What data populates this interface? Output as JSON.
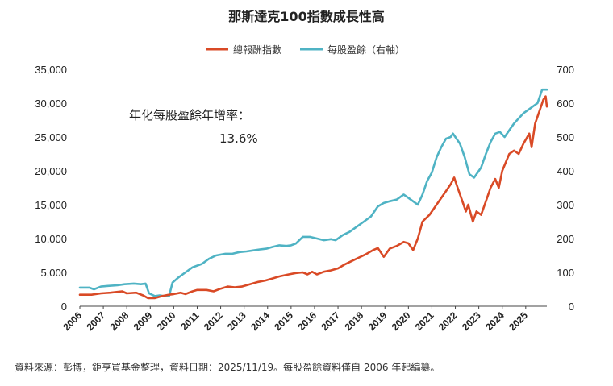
{
  "chart_data": {
    "type": "line",
    "title": "那斯達克100指數成長性高",
    "source_note": "資料來源：彭博，鉅亨買基金整理，資料日期：2025/11/19。每股盈餘資料僅自 2006 年起編纂。",
    "annotation": {
      "label": "年化每股盈餘年增率：",
      "value": "13.6%"
    },
    "left_axis": {
      "min": 0,
      "max": 35000,
      "ticks": [
        "0",
        "5,000",
        "10,000",
        "15,000",
        "20,000",
        "25,000",
        "30,000",
        "35,000"
      ]
    },
    "right_axis": {
      "min": 0,
      "max": 700,
      "ticks": [
        "0",
        "100",
        "200",
        "300",
        "400",
        "500",
        "600",
        "700"
      ]
    },
    "x_axis": {
      "min": 2006,
      "max": 2025.9,
      "ticks": [
        "2006",
        "2007",
        "2008",
        "2009",
        "2010",
        "2011",
        "2012",
        "2013",
        "2014",
        "2015",
        "2016",
        "2017",
        "2018",
        "2019",
        "2020",
        "2021",
        "2022",
        "2023",
        "2024",
        "2025"
      ]
    },
    "legend_position": "top-center",
    "grid": false,
    "series": [
      {
        "name": "總報酬指數",
        "axis": "left",
        "color": "#d94a26",
        "points": [
          [
            2006.0,
            1700
          ],
          [
            2006.5,
            1700
          ],
          [
            2006.9,
            1900
          ],
          [
            2007.3,
            2000
          ],
          [
            2007.8,
            2200
          ],
          [
            2008.0,
            1900
          ],
          [
            2008.4,
            2000
          ],
          [
            2008.7,
            1600
          ],
          [
            2008.9,
            1200
          ],
          [
            2009.2,
            1200
          ],
          [
            2009.5,
            1500
          ],
          [
            2009.8,
            1700
          ],
          [
            2010.0,
            1800
          ],
          [
            2010.3,
            2000
          ],
          [
            2010.5,
            1800
          ],
          [
            2010.8,
            2200
          ],
          [
            2011.0,
            2400
          ],
          [
            2011.4,
            2400
          ],
          [
            2011.7,
            2200
          ],
          [
            2012.0,
            2600
          ],
          [
            2012.3,
            2900
          ],
          [
            2012.6,
            2800
          ],
          [
            2012.9,
            2900
          ],
          [
            2013.2,
            3200
          ],
          [
            2013.6,
            3600
          ],
          [
            2013.9,
            3800
          ],
          [
            2014.2,
            4100
          ],
          [
            2014.5,
            4400
          ],
          [
            2014.9,
            4700
          ],
          [
            2015.2,
            4900
          ],
          [
            2015.5,
            5000
          ],
          [
            2015.7,
            4700
          ],
          [
            2015.9,
            5100
          ],
          [
            2016.1,
            4700
          ],
          [
            2016.4,
            5100
          ],
          [
            2016.7,
            5300
          ],
          [
            2017.0,
            5600
          ],
          [
            2017.3,
            6200
          ],
          [
            2017.6,
            6700
          ],
          [
            2017.9,
            7200
          ],
          [
            2018.2,
            7700
          ],
          [
            2018.5,
            8300
          ],
          [
            2018.7,
            8600
          ],
          [
            2018.95,
            7300
          ],
          [
            2019.2,
            8500
          ],
          [
            2019.5,
            8900
          ],
          [
            2019.8,
            9500
          ],
          [
            2020.0,
            9300
          ],
          [
            2020.2,
            8300
          ],
          [
            2020.4,
            10000
          ],
          [
            2020.6,
            12500
          ],
          [
            2020.9,
            13500
          ],
          [
            2021.1,
            14500
          ],
          [
            2021.3,
            15500
          ],
          [
            2021.6,
            17000
          ],
          [
            2021.8,
            18000
          ],
          [
            2021.95,
            19000
          ],
          [
            2022.1,
            17500
          ],
          [
            2022.3,
            15500
          ],
          [
            2022.45,
            14000
          ],
          [
            2022.55,
            15000
          ],
          [
            2022.75,
            12500
          ],
          [
            2022.9,
            14000
          ],
          [
            2023.1,
            13500
          ],
          [
            2023.3,
            15500
          ],
          [
            2023.5,
            17500
          ],
          [
            2023.7,
            18800
          ],
          [
            2023.85,
            17500
          ],
          [
            2024.0,
            20000
          ],
          [
            2024.3,
            22500
          ],
          [
            2024.5,
            23000
          ],
          [
            2024.7,
            22500
          ],
          [
            2024.9,
            24000
          ],
          [
            2025.15,
            25500
          ],
          [
            2025.25,
            23500
          ],
          [
            2025.4,
            27000
          ],
          [
            2025.6,
            29000
          ],
          [
            2025.75,
            30500
          ],
          [
            2025.85,
            31000
          ],
          [
            2025.9,
            29500
          ]
        ]
      },
      {
        "name": "每股盈餘（右軸）",
        "axis": "right",
        "color": "#4fb3c4",
        "points": [
          [
            2006.0,
            55
          ],
          [
            2006.4,
            55
          ],
          [
            2006.6,
            50
          ],
          [
            2006.9,
            58
          ],
          [
            2007.2,
            60
          ],
          [
            2007.6,
            62
          ],
          [
            2007.9,
            65
          ],
          [
            2008.3,
            67
          ],
          [
            2008.6,
            65
          ],
          [
            2008.8,
            67
          ],
          [
            2008.95,
            38
          ],
          [
            2009.2,
            30
          ],
          [
            2009.4,
            32
          ],
          [
            2009.6,
            30
          ],
          [
            2009.8,
            30
          ],
          [
            2009.95,
            70
          ],
          [
            2010.2,
            85
          ],
          [
            2010.5,
            100
          ],
          [
            2010.8,
            115
          ],
          [
            2011.2,
            125
          ],
          [
            2011.5,
            140
          ],
          [
            2011.8,
            150
          ],
          [
            2012.2,
            155
          ],
          [
            2012.5,
            155
          ],
          [
            2012.8,
            160
          ],
          [
            2013.1,
            162
          ],
          [
            2013.4,
            165
          ],
          [
            2013.7,
            168
          ],
          [
            2013.95,
            170
          ],
          [
            2014.2,
            175
          ],
          [
            2014.5,
            180
          ],
          [
            2014.8,
            178
          ],
          [
            2015.0,
            180
          ],
          [
            2015.2,
            185
          ],
          [
            2015.5,
            205
          ],
          [
            2015.8,
            205
          ],
          [
            2016.1,
            200
          ],
          [
            2016.4,
            195
          ],
          [
            2016.7,
            198
          ],
          [
            2016.9,
            195
          ],
          [
            2017.2,
            210
          ],
          [
            2017.5,
            220
          ],
          [
            2017.8,
            235
          ],
          [
            2018.1,
            250
          ],
          [
            2018.4,
            265
          ],
          [
            2018.7,
            295
          ],
          [
            2018.95,
            305
          ],
          [
            2019.2,
            310
          ],
          [
            2019.5,
            315
          ],
          [
            2019.8,
            330
          ],
          [
            2020.0,
            320
          ],
          [
            2020.2,
            310
          ],
          [
            2020.4,
            300
          ],
          [
            2020.6,
            330
          ],
          [
            2020.8,
            370
          ],
          [
            2021.0,
            395
          ],
          [
            2021.2,
            440
          ],
          [
            2021.4,
            470
          ],
          [
            2021.6,
            495
          ],
          [
            2021.8,
            500
          ],
          [
            2021.9,
            510
          ],
          [
            2022.0,
            500
          ],
          [
            2022.2,
            480
          ],
          [
            2022.4,
            440
          ],
          [
            2022.6,
            390
          ],
          [
            2022.8,
            380
          ],
          [
            2022.95,
            395
          ],
          [
            2023.1,
            410
          ],
          [
            2023.3,
            450
          ],
          [
            2023.5,
            485
          ],
          [
            2023.7,
            510
          ],
          [
            2023.9,
            515
          ],
          [
            2024.1,
            500
          ],
          [
            2024.3,
            520
          ],
          [
            2024.5,
            540
          ],
          [
            2024.7,
            555
          ],
          [
            2024.9,
            570
          ],
          [
            2025.1,
            580
          ],
          [
            2025.3,
            590
          ],
          [
            2025.5,
            600
          ],
          [
            2025.7,
            640
          ],
          [
            2025.9,
            640
          ]
        ]
      }
    ]
  }
}
